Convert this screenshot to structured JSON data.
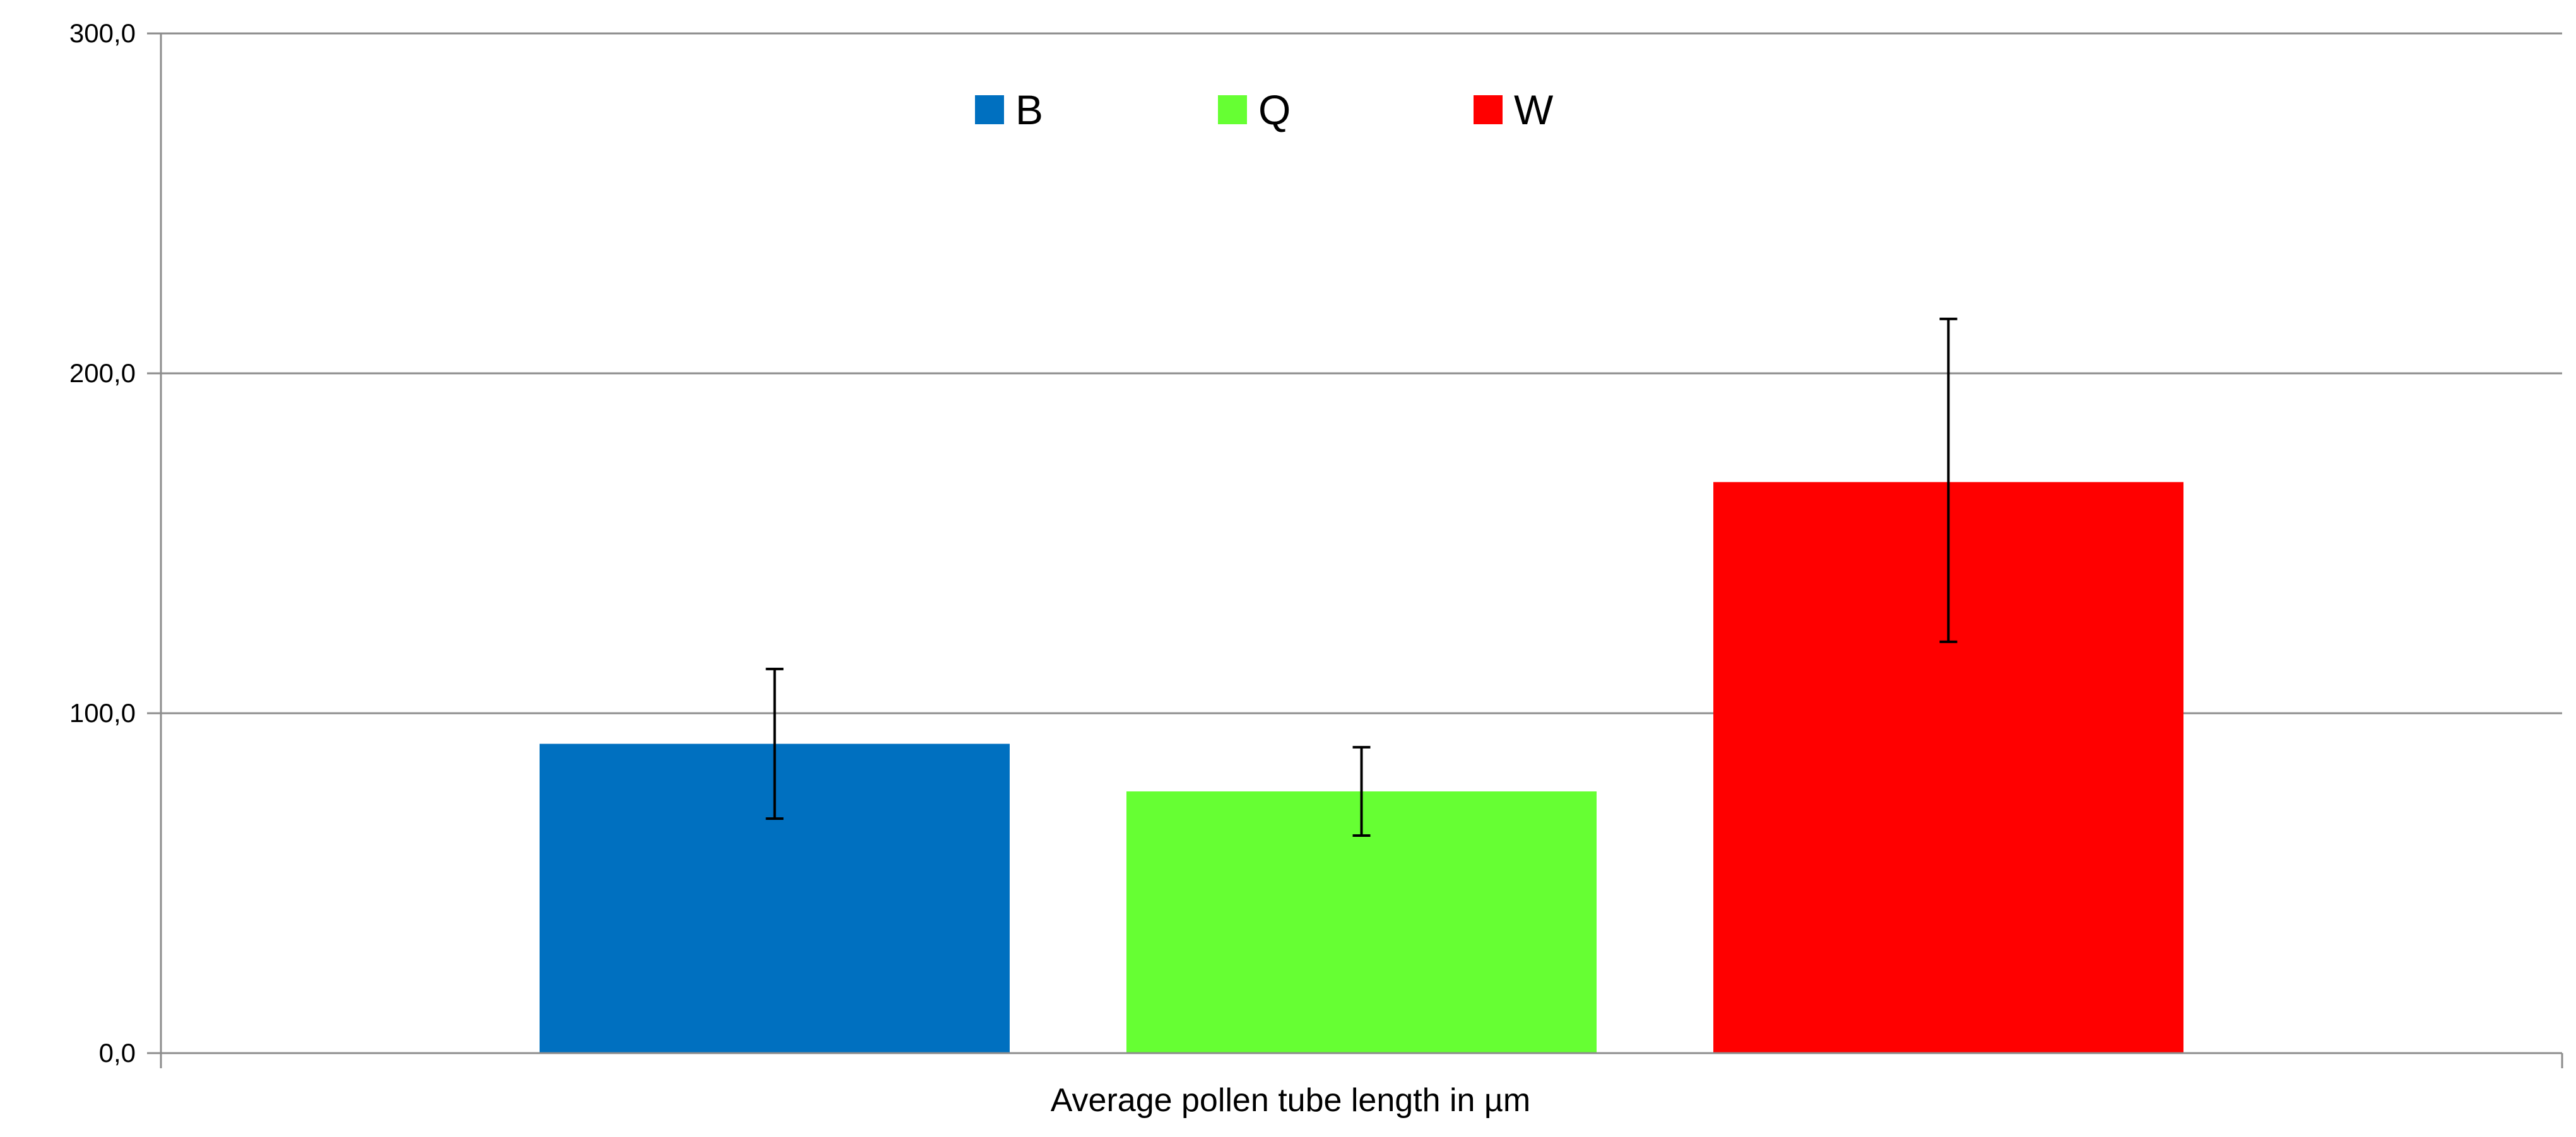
{
  "chart_data": {
    "type": "bar",
    "xlabel": "Average pollen tube length in µm",
    "ylabel": "",
    "ylim": [
      0,
      300
    ],
    "yticks": [
      0,
      100,
      200,
      300
    ],
    "ytick_labels": [
      "0,0",
      "100,0",
      "200,0",
      "300,0"
    ],
    "grid": true,
    "legend_position": "top-center",
    "series": [
      {
        "name": "B",
        "value": 91,
        "error_low": 69,
        "error_high": 113,
        "color": "#0070C0"
      },
      {
        "name": "Q",
        "value": 77,
        "error_low": 64,
        "error_high": 90,
        "color": "#66FF33"
      },
      {
        "name": "W",
        "value": 168,
        "error_low": 121,
        "error_high": 216,
        "color": "#FF0000"
      }
    ]
  }
}
